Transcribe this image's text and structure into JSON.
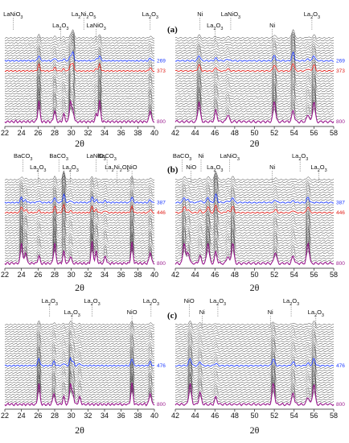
{
  "figure": {
    "panel_labels": [
      "(a)",
      "(b)",
      "(c)"
    ],
    "xlabel": "2θ"
  },
  "colors": {
    "gray": "#111111",
    "blue": "#1f3cff",
    "red": "#e0201b",
    "magenta": "#9b1b8f"
  },
  "chart_data": [
    {
      "type": "line",
      "id": "a-left",
      "panel": "(a)",
      "xlabel": "2θ",
      "xlim": [
        22,
        40
      ],
      "xticks": [
        22,
        24,
        26,
        28,
        30,
        32,
        34,
        36,
        38,
        40
      ],
      "grid": false,
      "series": [
        {
          "name": "269",
          "color": "blue"
        },
        {
          "name": "373",
          "color": "red"
        },
        {
          "name": "800",
          "color": "magenta"
        }
      ],
      "peaks": [
        26.1,
        28.0,
        29.1,
        29.9,
        30.2,
        33.0,
        33.4,
        39.5
      ],
      "annotations": [
        {
          "text": "LaNiO",
          "sub": "3",
          "x": 23.0
        },
        {
          "text": "La",
          "sub": "2",
          "text2": "O",
          "sub2": "3",
          "x": 28.7
        },
        {
          "text": "La",
          "sub": "2",
          "text2": "Ni",
          "sub2": "2",
          "text3": "O",
          "sub3": "5",
          "x": 31.5
        },
        {
          "text": "LaNiO",
          "sub": "3",
          "x": 33.0
        },
        {
          "text": "La",
          "sub": "2",
          "text2": "O",
          "sub2": "3",
          "x": 39.5
        }
      ]
    },
    {
      "type": "line",
      "id": "a-right",
      "panel": "(a)",
      "xlabel": "2θ",
      "xlim": [
        42,
        58
      ],
      "xticks": [
        42,
        44,
        46,
        48,
        50,
        52,
        54,
        56,
        58
      ],
      "grid": false,
      "series": [
        {
          "name": "269",
          "color": "blue"
        },
        {
          "name": "373",
          "color": "red"
        },
        {
          "name": "800",
          "color": "magenta"
        }
      ],
      "peaks": [
        44.4,
        46.1,
        47.3,
        52.0,
        53.9,
        55.4,
        56.0
      ],
      "annotations": [
        {
          "text": "Ni",
          "x": 44.5
        },
        {
          "text": "La",
          "sub": "2",
          "text2": "O",
          "sub2": "3",
          "x": 46.0
        },
        {
          "text": "LaNiO",
          "sub": "3",
          "x": 47.6
        },
        {
          "text": "Ni",
          "x": 51.8
        },
        {
          "text": "La",
          "sub": "2",
          "text2": "O",
          "sub2": "3",
          "x": 55.8
        }
      ]
    },
    {
      "type": "line",
      "id": "b-left",
      "panel": "(b)",
      "xlabel": "2θ",
      "xlim": [
        22,
        40
      ],
      "xticks": [
        22,
        24,
        26,
        28,
        30,
        32,
        34,
        36,
        38,
        40
      ],
      "grid": false,
      "series": [
        {
          "name": "387",
          "color": "blue"
        },
        {
          "name": "446",
          "color": "red"
        },
        {
          "name": "800",
          "color": "magenta"
        }
      ],
      "peaks": [
        24.0,
        24.5,
        26.1,
        28.0,
        29.1,
        29.9,
        32.5,
        33.0,
        34.1,
        37.3,
        39.5
      ],
      "annotations": [
        {
          "text": "BaCO",
          "sub": "3",
          "x": 24.2
        },
        {
          "text": "La",
          "sub": "2",
          "text2": "O",
          "sub2": "3",
          "x": 26.0
        },
        {
          "text": "BaCO",
          "sub": "3",
          "x": 28.5
        },
        {
          "text": "La",
          "sub": "2",
          "text2": "O",
          "sub2": "3",
          "x": 29.9
        },
        {
          "text": "LaNiO",
          "sub": "3",
          "x": 33.0
        },
        {
          "text": "La",
          "sub": "2",
          "text2": "Ni",
          "sub2": "2",
          "text3": "O",
          "sub3": "5",
          "x": 35.5
        },
        {
          "text": "BaCO",
          "sub": "3",
          "x": 34.3
        },
        {
          "text": "NiO",
          "x": 37.3
        }
      ]
    },
    {
      "type": "line",
      "id": "b-right",
      "panel": "(b)",
      "xlabel": "2θ",
      "xlim": [
        42,
        58
      ],
      "xticks": [
        42,
        44,
        46,
        48,
        50,
        52,
        54,
        56,
        58
      ],
      "grid": false,
      "series": [
        {
          "name": "387",
          "color": "blue"
        },
        {
          "name": "446",
          "color": "red"
        },
        {
          "name": "800",
          "color": "magenta"
        }
      ],
      "peaks": [
        42.9,
        43.3,
        44.5,
        45.3,
        46.1,
        47.3,
        47.8,
        52.1,
        53.9,
        55.4
      ],
      "annotations": [
        {
          "text": "BaCO",
          "sub": "3",
          "x": 42.7
        },
        {
          "text": "NiO",
          "x": 43.6
        },
        {
          "text": "Ni",
          "x": 44.6
        },
        {
          "text": "La",
          "sub": "2",
          "text2": "O",
          "sub2": "3",
          "x": 46.0
        },
        {
          "text": "LaNiO",
          "sub": "3",
          "x": 47.5
        },
        {
          "text": "Ni",
          "x": 51.8
        },
        {
          "text": "La",
          "sub": "2",
          "text2": "O",
          "sub2": "3",
          "x": 54.6
        },
        {
          "text": "La",
          "sub": "2",
          "text2": "O",
          "sub2": "3",
          "x": 56.5
        }
      ]
    },
    {
      "type": "line",
      "id": "c-left",
      "panel": "(c)",
      "xlabel": "2θ",
      "xlim": [
        22,
        40
      ],
      "xticks": [
        22,
        24,
        26,
        28,
        30,
        32,
        34,
        36,
        38,
        40
      ],
      "grid": false,
      "series": [
        {
          "name": "476",
          "color": "blue"
        },
        {
          "name": "800",
          "color": "magenta"
        }
      ],
      "peaks": [
        26.1,
        27.9,
        29.1,
        29.9,
        30.2,
        31.0,
        37.3,
        39.5
      ],
      "annotations": [
        {
          "text": "La",
          "sub": "2",
          "text2": "O",
          "sub2": "3",
          "x": 27.4
        },
        {
          "text": "La",
          "sub": "2",
          "text2": "O",
          "sub2": "3",
          "x": 30.1
        },
        {
          "text": "La",
          "sub": "2",
          "text2": "O",
          "sub2": "3",
          "x": 32.5
        },
        {
          "text": "NiO",
          "x": 37.3
        },
        {
          "text": "La",
          "sub": "2",
          "text2": "O",
          "sub2": "3",
          "x": 39.6
        }
      ]
    },
    {
      "type": "line",
      "id": "c-right",
      "panel": "(c)",
      "xlabel": "2θ",
      "xlim": [
        42,
        58
      ],
      "xticks": [
        42,
        44,
        46,
        48,
        50,
        52,
        54,
        56,
        58
      ],
      "grid": false,
      "series": [
        {
          "name": "476",
          "color": "blue"
        },
        {
          "name": "800",
          "color": "magenta"
        }
      ],
      "peaks": [
        43.5,
        44.5,
        46.1,
        51.9,
        53.9,
        55.4,
        56.0
      ],
      "annotations": [
        {
          "text": "NiO",
          "x": 43.4
        },
        {
          "text": "Ni",
          "x": 44.7
        },
        {
          "text": "La",
          "sub": "2",
          "text2": "O",
          "sub2": "3",
          "x": 46.3
        },
        {
          "text": "Ni",
          "x": 51.6
        },
        {
          "text": "La",
          "sub": "2",
          "text2": "O",
          "sub2": "3",
          "x": 53.7
        },
        {
          "text": "La",
          "sub": "2",
          "text2": "O",
          "sub2": "3",
          "x": 56.2
        }
      ]
    }
  ]
}
